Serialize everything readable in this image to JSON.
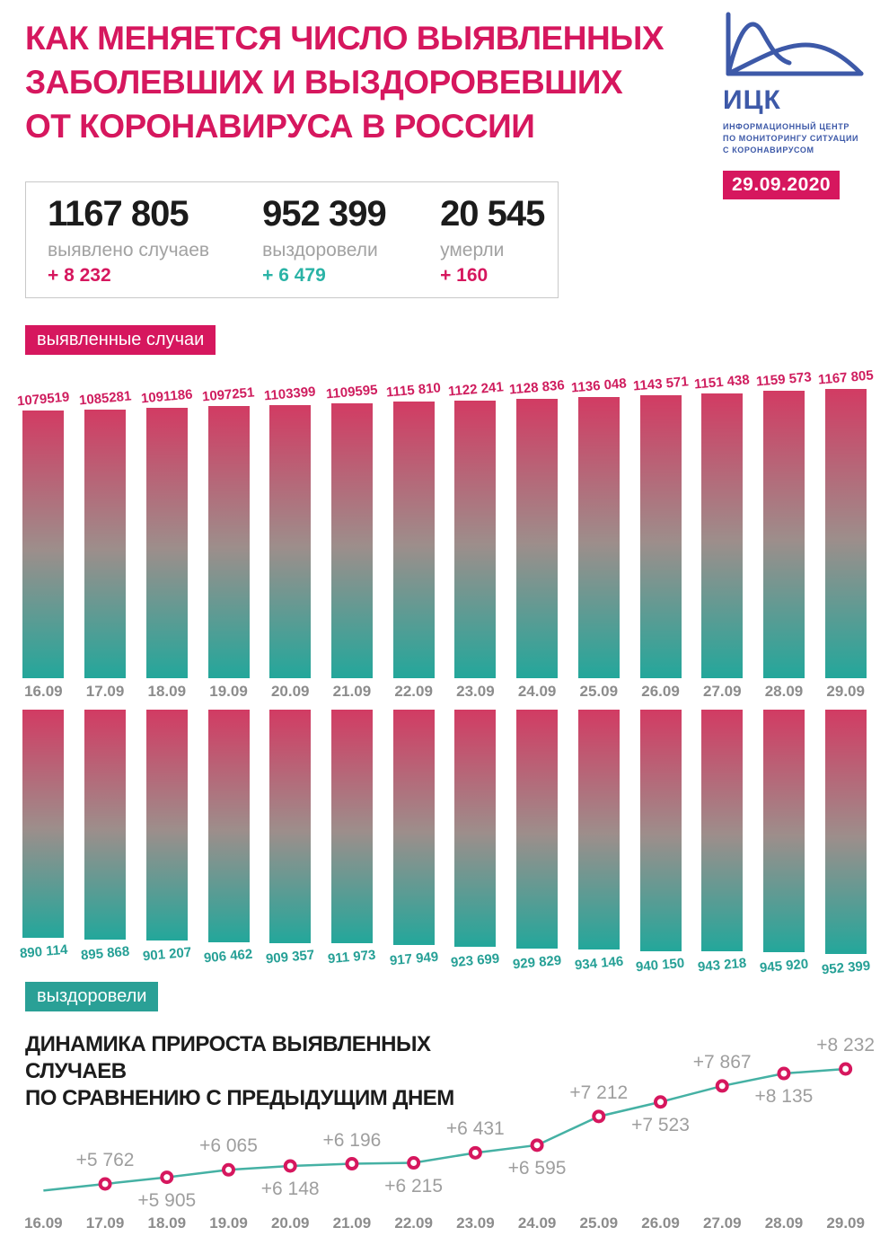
{
  "colors": {
    "pink": "#d6175e",
    "pink_label": "#cf1d5e",
    "teal": "#2aa096",
    "teal_label": "#26a096",
    "blue": "#3d59a8",
    "gray_label": "#9e9e9e",
    "date_gray": "#8c8c8c",
    "bar_gradient_top": "#d23b63",
    "bar_gradient_mid": "#9d8e8b",
    "bar_gradient_bottom": "#23a79b",
    "line_color": "#45b1a4",
    "marker_color": "#d6175e"
  },
  "header": {
    "title_lines": [
      "КАК МЕНЯЕТСЯ ЧИСЛО ВЫЯВЛЕННЫХ",
      "ЗАБОЛЕВШИХ И ВЫЗДОРОВЕВШИХ",
      "ОТ КОРОНАВИРУСА В РОССИИ"
    ],
    "logo": {
      "abbr": "ИЦК",
      "subtitle_lines": [
        "ИНФОРМАЦИОННЫЙ ЦЕНТР",
        "ПО МОНИТОРИНГУ СИТУАЦИИ",
        "С КОРОНАВИРУСОМ"
      ]
    },
    "date_badge": "29.09.2020"
  },
  "stats": {
    "items": [
      {
        "value": "1167 805",
        "label": "выявлено случаев",
        "delta": "+ 8 232",
        "delta_color": "#d6175e"
      },
      {
        "value": "952 399",
        "label": "выздоровели",
        "delta": "+ 6 479",
        "delta_color": "#2ab3a6"
      },
      {
        "value": "20 545",
        "label": "умерли",
        "delta": "+ 160",
        "delta_color": "#d6175e"
      }
    ]
  },
  "growth_title_lines": [
    "ДИНАМИКА ПРИРОСТА ВЫЯВЛЕННЫХ СЛУЧАЕВ",
    "ПО СРАВНЕНИЮ С ПРЕДЫДУЩИМ ДНЕМ"
  ],
  "chart_data": [
    {
      "type": "bar",
      "name": "detected-cases",
      "badge": "выявленные случаи",
      "categories": [
        "16.09",
        "17.09",
        "18.09",
        "19.09",
        "20.09",
        "21.09",
        "22.09",
        "23.09",
        "24.09",
        "25.09",
        "26.09",
        "27.09",
        "28.09",
        "29.09"
      ],
      "values": [
        1079519,
        1085281,
        1091186,
        1097251,
        1103399,
        1109595,
        1115810,
        1122241,
        1128836,
        1136048,
        1143571,
        1151438,
        1159573,
        1167805
      ],
      "value_labels": [
        "1079519",
        "1085281",
        "1091186",
        "1097251",
        "1103399",
        "1109595",
        "1115 810",
        "1122 241",
        "1128 836",
        "1136 048",
        "1143 571",
        "1151 438",
        "1159 573",
        "1167 805"
      ],
      "ylim": [
        0,
        1167805
      ],
      "bars_anchored": "bottom",
      "legend_position": "top-left"
    },
    {
      "type": "bar",
      "name": "recovered",
      "badge": "выздоровели",
      "categories": [
        "16.09",
        "17.09",
        "18.09",
        "19.09",
        "20.09",
        "21.09",
        "22.09",
        "23.09",
        "24.09",
        "25.09",
        "26.09",
        "27.09",
        "28.09",
        "29.09"
      ],
      "values": [
        890114,
        895868,
        901207,
        906462,
        909357,
        911973,
        917949,
        923699,
        929829,
        934146,
        940150,
        943218,
        945920,
        952399
      ],
      "value_labels": [
        "890 114",
        "895 868",
        "901 207",
        "906 462",
        "909 357",
        "911 973",
        "917 949",
        "923 699",
        "929 829",
        "934 146",
        "940 150",
        "943 218",
        "945 920",
        "952 399"
      ],
      "ylim": [
        0,
        952399
      ],
      "bars_anchored": "top",
      "legend_position": "bottom-left"
    },
    {
      "type": "line",
      "name": "daily-increase",
      "title": "ДИНАМИКА ПРИРОСТА ВЫЯВЛЕННЫХ СЛУЧАЕВ ПО СРАВНЕНИЮ С ПРЕДЫДУЩИМ ДНЕМ",
      "categories": [
        "16.09",
        "17.09",
        "18.09",
        "19.09",
        "20.09",
        "21.09",
        "22.09",
        "23.09",
        "24.09",
        "25.09",
        "26.09",
        "27.09",
        "28.09",
        "29.09"
      ],
      "values": [
        null,
        5762,
        5905,
        6065,
        6148,
        6196,
        6215,
        6431,
        6595,
        7212,
        7523,
        7867,
        8135,
        8232
      ],
      "point_labels": [
        "",
        "+5 762",
        "+5 905",
        "+6 065",
        "+6 148",
        "+6 196",
        "+6 215",
        "+6 431",
        "+6 595",
        "+7 212",
        "+7 523",
        "+7 867",
        "+8 135",
        "+8 232"
      ],
      "ylim": [
        5600,
        8400
      ],
      "grid": false,
      "marker": "open-circle"
    }
  ]
}
